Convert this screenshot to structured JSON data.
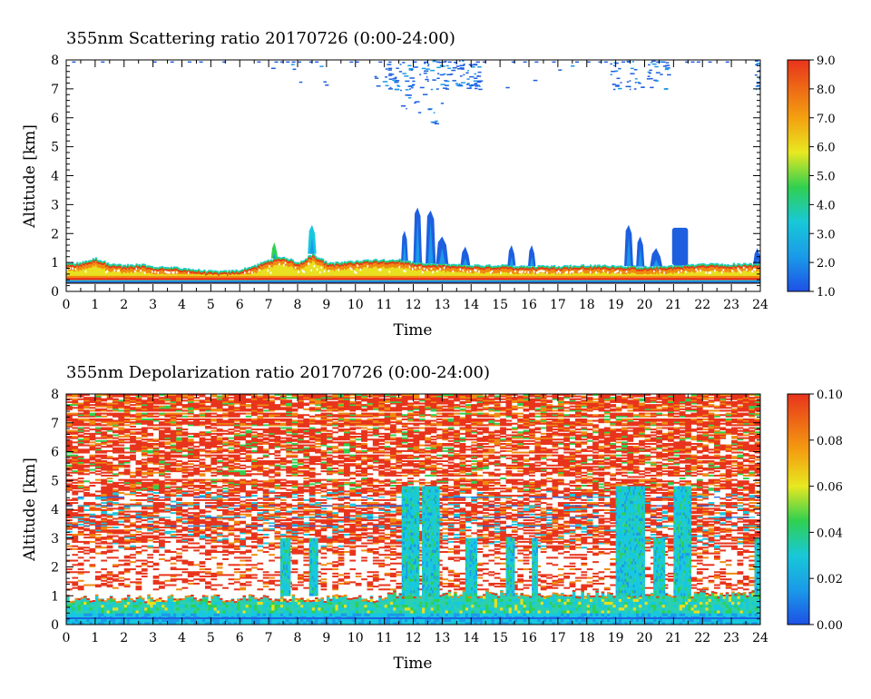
{
  "panels": [
    {
      "title": "355nm Scattering ratio  20170726 (0:00-24:00)",
      "xlabel": "Time",
      "ylabel": "Altitude [km]",
      "x_ticks": [
        "0",
        "1",
        "2",
        "3",
        "4",
        "5",
        "6",
        "7",
        "8",
        "9",
        "10",
        "11",
        "12",
        "13",
        "14",
        "15",
        "16",
        "17",
        "18",
        "19",
        "20",
        "21",
        "22",
        "23",
        "24"
      ],
      "y_ticks": [
        "0",
        "1",
        "2",
        "3",
        "4",
        "5",
        "6",
        "7",
        "8"
      ],
      "colorbar_ticks": [
        "1.0",
        "2.0",
        "3.0",
        "4.0",
        "5.0",
        "6.0",
        "7.0",
        "8.0",
        "9.0"
      ]
    },
    {
      "title": "355nm Depolarization ratio  20170726 (0:00-24:00)",
      "xlabel": "Time",
      "ylabel": "Altitude [km]",
      "x_ticks": [
        "0",
        "1",
        "2",
        "3",
        "4",
        "5",
        "6",
        "7",
        "8",
        "9",
        "10",
        "11",
        "12",
        "13",
        "14",
        "15",
        "16",
        "17",
        "18",
        "19",
        "20",
        "21",
        "22",
        "23",
        "24"
      ],
      "y_ticks": [
        "0",
        "1",
        "2",
        "3",
        "4",
        "5",
        "6",
        "7",
        "8"
      ],
      "colorbar_ticks": [
        "0.00",
        "0.02",
        "0.04",
        "0.06",
        "0.08",
        "0.10"
      ]
    }
  ],
  "chart_data": [
    {
      "type": "heatmap",
      "title": "355nm Scattering ratio  20170726 (0:00-24:00)",
      "xlabel": "Time",
      "ylabel": "Altitude [km]",
      "xlim": [
        0,
        24
      ],
      "ylim": [
        0,
        8
      ],
      "colorbar_range": [
        1.0,
        9.0
      ],
      "colormap": [
        "#1e5fe0",
        "#17b8e6",
        "#30d050",
        "#f0e020",
        "#f08a10",
        "#e8341c"
      ],
      "boundary_layer_top_km": [
        [
          0,
          0.95
        ],
        [
          0.5,
          1.0
        ],
        [
          1,
          1.15
        ],
        [
          1.5,
          0.95
        ],
        [
          2,
          0.9
        ],
        [
          2.5,
          0.95
        ],
        [
          3,
          0.85
        ],
        [
          3.5,
          0.85
        ],
        [
          4,
          0.8
        ],
        [
          4.5,
          0.75
        ],
        [
          5,
          0.7
        ],
        [
          5.5,
          0.7
        ],
        [
          6,
          0.75
        ],
        [
          6.5,
          0.9
        ],
        [
          7,
          1.1
        ],
        [
          7.5,
          1.2
        ],
        [
          8,
          1.0
        ],
        [
          8.5,
          1.3
        ],
        [
          9,
          1.0
        ],
        [
          9.5,
          1.0
        ],
        [
          10,
          1.05
        ],
        [
          10.5,
          1.1
        ],
        [
          11,
          1.1
        ],
        [
          11.5,
          1.1
        ],
        [
          12,
          1.0
        ],
        [
          13,
          0.95
        ],
        [
          14,
          0.9
        ],
        [
          15,
          0.9
        ],
        [
          16,
          0.88
        ],
        [
          17,
          0.88
        ],
        [
          18,
          0.9
        ],
        [
          19,
          0.9
        ],
        [
          20,
          0.85
        ],
        [
          21,
          0.9
        ],
        [
          22,
          0.95
        ],
        [
          23,
          0.95
        ],
        [
          24,
          0.95
        ]
      ],
      "cloud_features": [
        {
          "t": 11.7,
          "top_km": 2.1,
          "value": 2.0
        },
        {
          "t": 12.15,
          "top_km": 2.9,
          "value": 2.0
        },
        {
          "t": 12.6,
          "top_km": 2.8,
          "value": 2.0
        },
        {
          "t": 13.0,
          "top_km": 1.9,
          "value": 2.0
        },
        {
          "t": 13.8,
          "top_km": 1.55,
          "value": 2.0
        },
        {
          "t": 15.4,
          "top_km": 1.6,
          "value": 2.0
        },
        {
          "t": 16.1,
          "top_km": 1.6,
          "value": 2.0
        },
        {
          "t": 19.45,
          "top_km": 2.3,
          "value": 2.0
        },
        {
          "t": 19.85,
          "top_km": 1.9,
          "value": 2.0
        },
        {
          "t": 20.4,
          "top_km": 1.5,
          "value": 2.0
        },
        {
          "t": 21.2,
          "top_km": 2.2,
          "value": 2.0
        },
        {
          "t": 23.9,
          "top_km": 1.5,
          "value": 2.0
        },
        {
          "t": 8.5,
          "top_km": 2.3,
          "value": 2.5
        },
        {
          "t": 7.2,
          "top_km": 1.7,
          "value": 3.0
        }
      ],
      "upper_cloud_km": [
        7.0,
        8.0
      ],
      "upper_cloud_times_hr": [
        10.5,
        14.0,
        19.0,
        20.5,
        24.0
      ]
    },
    {
      "type": "heatmap",
      "title": "355nm Depolarization ratio  20170726 (0:00-24:00)",
      "xlabel": "Time",
      "ylabel": "Altitude [km]",
      "xlim": [
        0,
        24
      ],
      "ylim": [
        0,
        8
      ],
      "colorbar_range": [
        0.0,
        0.1
      ],
      "colormap": [
        "#1e5fe0",
        "#17b8e6",
        "#30d050",
        "#f0e020",
        "#f08a10",
        "#e8341c"
      ],
      "aerosol_layer_km": [
        0,
        1.0
      ],
      "aerosol_layer_value": 0.02,
      "free_troposphere_value": 0.1,
      "low_depol_columns_hr": [
        [
          11.6,
          12.2
        ],
        [
          12.3,
          12.9
        ],
        [
          13.8,
          14.2
        ],
        [
          15.2,
          15.5
        ],
        [
          16.1,
          16.3
        ],
        [
          19.0,
          20.0
        ],
        [
          20.3,
          20.7
        ],
        [
          21.0,
          21.6
        ],
        [
          23.8,
          24.0
        ],
        [
          8.4,
          8.7
        ],
        [
          7.4,
          7.7
        ]
      ]
    }
  ]
}
